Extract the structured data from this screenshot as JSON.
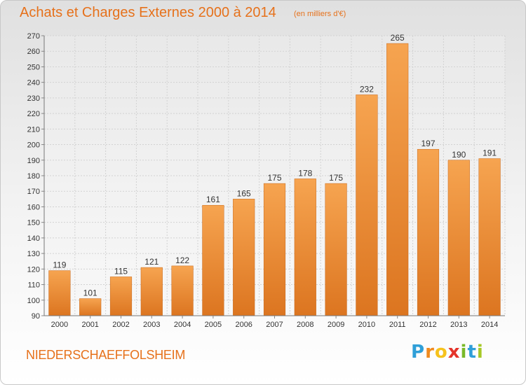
{
  "header": {
    "title": "Achats et Charges Externes 2000 à 2014",
    "subtitle": "(en milliers d'€)"
  },
  "footer": {
    "commune": "NIEDERSCHAEFFOLSHEIM",
    "logo_letters": [
      "P",
      "r",
      "o",
      "x",
      "i",
      "t",
      "i"
    ],
    "logo_colors": [
      "#2f9fd8",
      "#f08a1d",
      "#f6c21c",
      "#e4342a",
      "#7ab929",
      "#2f9fd8",
      "#a6c827"
    ]
  },
  "colors": {
    "accent": "#e6711b",
    "bar_light": "#f6a450",
    "bar_dark": "#dc7520"
  },
  "chart_data": {
    "type": "bar",
    "title": "Achats et Charges Externes 2000 à 2014",
    "subtitle": "(en milliers d'€)",
    "xlabel": "",
    "ylabel": "",
    "categories": [
      "2000",
      "2001",
      "2002",
      "2003",
      "2004",
      "2005",
      "2006",
      "2007",
      "2008",
      "2009",
      "2010",
      "2011",
      "2012",
      "2013",
      "2014"
    ],
    "values": [
      119,
      101,
      115,
      121,
      122,
      161,
      165,
      175,
      178,
      175,
      232,
      265,
      197,
      190,
      191
    ],
    "ylim": [
      90,
      270
    ],
    "yticks": [
      90,
      100,
      110,
      120,
      130,
      140,
      150,
      160,
      170,
      180,
      190,
      200,
      210,
      220,
      230,
      240,
      250,
      260,
      270
    ],
    "grid": true
  }
}
